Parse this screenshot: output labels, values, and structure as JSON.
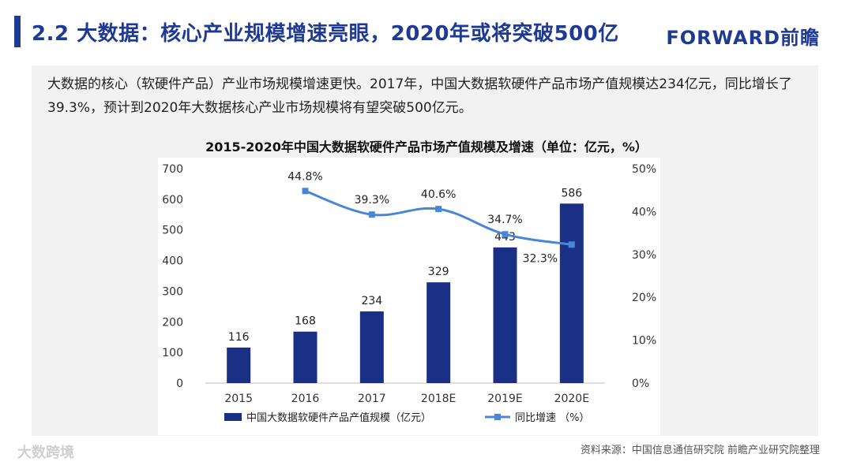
{
  "header": {
    "title": "2.2 大数据：核心产业规模增速亮眼，2020年或将突破500亿",
    "logo": "FORWARD前瞻"
  },
  "intro": {
    "text": "大数据的核心（软硬件产品）产业市场规模增速更快。2017年，中国大数据软硬件产品市场产值规模达234亿元，同比增长了39.3%，预计到2020年大数据核心产业市场规模将有望突破500亿元。"
  },
  "chart_data": {
    "type": "bar",
    "title": "2015-2020年中国大数据软硬件产品市场产值规模及增速（单位：亿元，%）",
    "categories": [
      "2015",
      "2016",
      "2017",
      "2018E",
      "2019E",
      "2020E"
    ],
    "series": [
      {
        "name": "中国大数据软硬件产品产值规模（亿元）",
        "type": "bar",
        "axis": "left",
        "values": [
          116,
          168,
          234,
          329,
          443,
          586
        ],
        "labels": [
          "116",
          "168",
          "234",
          "329",
          "443",
          "586"
        ]
      },
      {
        "name": "同比增速 （%）",
        "type": "line",
        "axis": "right",
        "values": [
          null,
          44.8,
          39.3,
          40.6,
          34.7,
          32.3
        ],
        "labels": [
          "",
          "44.8%",
          "39.3%",
          "40.6%",
          "34.7%",
          "32.3%"
        ]
      }
    ],
    "ylim_left": [
      0,
      700
    ],
    "yticks_left": [
      "0",
      "100",
      "200",
      "300",
      "400",
      "500",
      "600",
      "700"
    ],
    "ylim_right": [
      0,
      50
    ],
    "yticks_right": [
      "0%",
      "10%",
      "20%",
      "30%",
      "40%",
      "50%"
    ],
    "legend_position": "bottom",
    "colors": {
      "bar": "#1a2f86",
      "line": "#4a86d8"
    }
  },
  "footer": {
    "source": "资料来源：中国信息通信研究院 前瞻产业研究院整理",
    "watermark": "大数跨境"
  }
}
